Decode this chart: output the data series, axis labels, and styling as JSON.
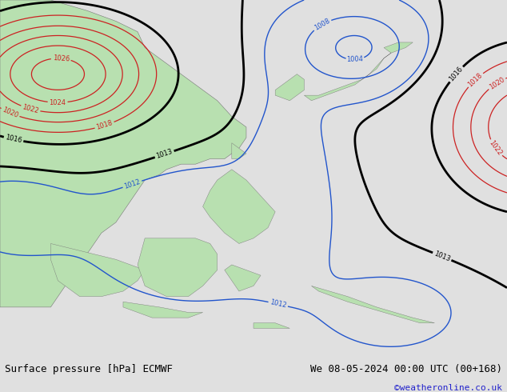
{
  "title_left": "Surface pressure [hPa] ECMWF",
  "title_right": "We 08-05-2024 00:00 UTC (00+168)",
  "credit": "©weatheronline.co.uk",
  "bg_color": "#d0d0d0",
  "land_color": "#b8e0b0",
  "figsize": [
    6.34,
    4.9
  ],
  "dpi": 100,
  "footer_bg": "#e0e0e0",
  "title_fontsize": 9,
  "credit_fontsize": 8,
  "credit_color": "#2222cc",
  "map_lon_min": 88,
  "map_lon_max": 158,
  "map_lat_min": -15,
  "map_lat_max": 52
}
